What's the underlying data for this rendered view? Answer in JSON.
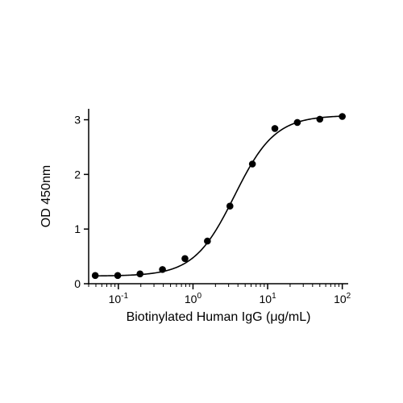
{
  "chart_data": {
    "type": "scatter",
    "xlabel": "Biotinylated Human IgG (μg/mL)",
    "ylabel": "OD 450nm",
    "xscale": "log",
    "xlim": [
      0.04,
      120
    ],
    "ylim": [
      0,
      3.2
    ],
    "x_ticks": [
      {
        "value": 0.1,
        "base": "10",
        "exp": "-1"
      },
      {
        "value": 1,
        "base": "10",
        "exp": "0"
      },
      {
        "value": 10,
        "base": "10",
        "exp": "1"
      },
      {
        "value": 100,
        "base": "10",
        "exp": "2"
      }
    ],
    "y_ticks": [
      {
        "value": 0,
        "label": "0"
      },
      {
        "value": 1,
        "label": "1"
      },
      {
        "value": 2,
        "label": "2"
      },
      {
        "value": 3,
        "label": "3"
      }
    ],
    "points": [
      {
        "x": 0.049,
        "y": 0.15
      },
      {
        "x": 0.098,
        "y": 0.15
      },
      {
        "x": 0.195,
        "y": 0.18
      },
      {
        "x": 0.39,
        "y": 0.26
      },
      {
        "x": 0.78,
        "y": 0.46
      },
      {
        "x": 1.56,
        "y": 0.78
      },
      {
        "x": 3.125,
        "y": 1.42
      },
      {
        "x": 6.25,
        "y": 2.19
      },
      {
        "x": 12.5,
        "y": 2.84
      },
      {
        "x": 25,
        "y": 2.95
      },
      {
        "x": 50,
        "y": 3.01
      },
      {
        "x": 100,
        "y": 3.06
      }
    ],
    "fit": {
      "model": "4PL",
      "bottom": 0.14,
      "top": 3.08,
      "ec50": 3.6,
      "hill": 1.6
    },
    "grid": false,
    "legend": "none",
    "marker_color": "#000000",
    "line_color": "#000000"
  }
}
